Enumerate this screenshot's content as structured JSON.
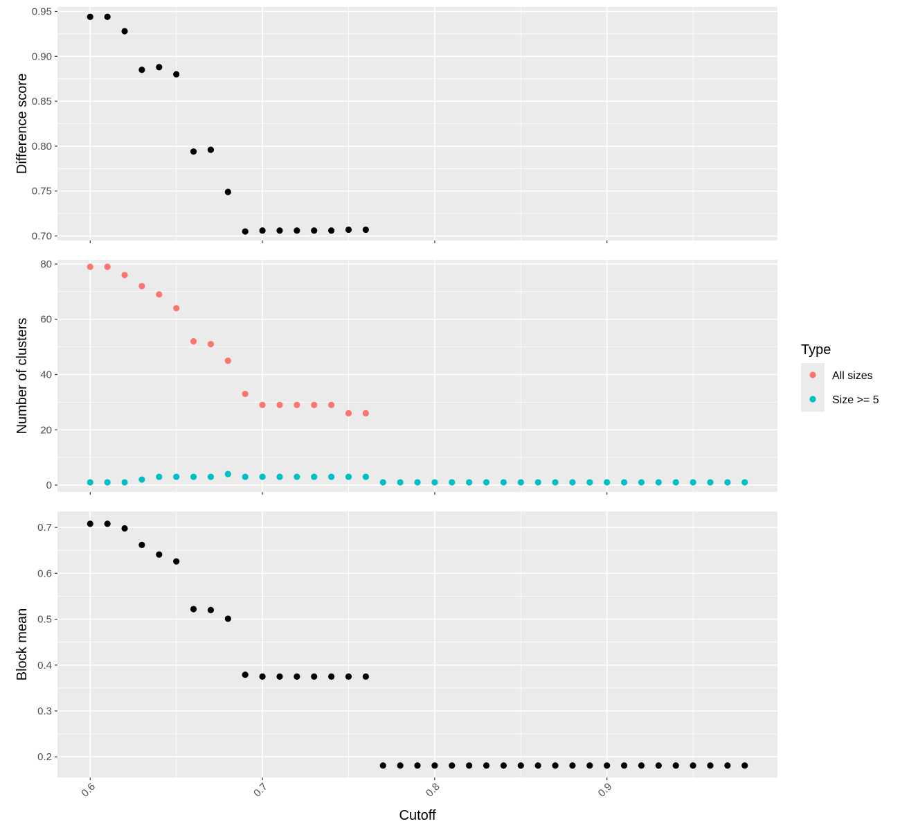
{
  "chart_data": {
    "type": "scatter",
    "x_label": "Cutoff",
    "x_ticks": [
      0.6,
      0.7,
      0.8,
      0.9
    ],
    "x_tick_labels": [
      "0.6",
      "0.7",
      "0.8",
      "0.9"
    ],
    "x_range": [
      0.581,
      0.999
    ],
    "grid": true,
    "legend": {
      "title": "Type",
      "placement": "right",
      "entries": [
        {
          "name": "All sizes",
          "color": "#F8766D"
        },
        {
          "name": "Size >= 5",
          "color": "#00BFC4"
        }
      ]
    },
    "panels": [
      {
        "id": "difference",
        "ylabel": "Difference score",
        "ylim": [
          0.695,
          0.955
        ],
        "y_ticks": [
          0.7,
          0.75,
          0.8,
          0.85,
          0.9,
          0.95
        ],
        "y_tick_labels": [
          "0.70",
          "0.75",
          "0.80",
          "0.85",
          "0.90",
          "0.95"
        ],
        "series": [
          {
            "color": "#000000",
            "x": [
              0.6,
              0.61,
              0.62,
              0.63,
              0.64,
              0.65,
              0.66,
              0.67,
              0.68,
              0.69,
              0.7,
              0.71,
              0.72,
              0.73,
              0.74,
              0.75,
              0.76
            ],
            "y": [
              0.944,
              0.944,
              0.928,
              0.885,
              0.888,
              0.88,
              0.794,
              0.796,
              0.749,
              0.705,
              0.706,
              0.706,
              0.706,
              0.706,
              0.706,
              0.707,
              0.707
            ]
          }
        ]
      },
      {
        "id": "clusters",
        "ylabel": "Number of clusters",
        "ylim": [
          -2.5,
          81.5
        ],
        "y_ticks": [
          0,
          20,
          40,
          60,
          80
        ],
        "y_tick_labels": [
          "0",
          "20",
          "40",
          "60",
          "80"
        ],
        "series": [
          {
            "name": "All sizes",
            "color": "#F8766D",
            "x": [
              0.6,
              0.61,
              0.62,
              0.63,
              0.64,
              0.65,
              0.66,
              0.67,
              0.68,
              0.69,
              0.7,
              0.71,
              0.72,
              0.73,
              0.74,
              0.75,
              0.76
            ],
            "y": [
              79,
              79,
              76,
              72,
              69,
              64,
              52,
              51,
              45,
              33,
              29,
              29,
              29,
              29,
              29,
              26,
              26
            ]
          },
          {
            "name": "Size >= 5",
            "color": "#00BFC4",
            "x": [
              0.6,
              0.61,
              0.62,
              0.63,
              0.64,
              0.65,
              0.66,
              0.67,
              0.68,
              0.69,
              0.7,
              0.71,
              0.72,
              0.73,
              0.74,
              0.75,
              0.76,
              0.77,
              0.78,
              0.79,
              0.8,
              0.81,
              0.82,
              0.83,
              0.84,
              0.85,
              0.86,
              0.87,
              0.88,
              0.89,
              0.9,
              0.91,
              0.92,
              0.93,
              0.94,
              0.95,
              0.96,
              0.97,
              0.98
            ],
            "y": [
              1,
              1,
              1,
              2,
              3,
              3,
              3,
              3,
              4,
              3,
              3,
              3,
              3,
              3,
              3,
              3,
              3,
              1,
              1,
              1,
              1,
              1,
              1,
              1,
              1,
              1,
              1,
              1,
              1,
              1,
              1,
              1,
              1,
              1,
              1,
              1,
              1,
              1,
              1
            ]
          }
        ]
      },
      {
        "id": "block",
        "ylabel": "Block mean",
        "ylim": [
          0.155,
          0.735
        ],
        "y_ticks": [
          0.2,
          0.3,
          0.4,
          0.5,
          0.6,
          0.7
        ],
        "y_tick_labels": [
          "0.2",
          "0.3",
          "0.4",
          "0.5",
          "0.6",
          "0.7"
        ],
        "series": [
          {
            "color": "#000000",
            "x": [
              0.6,
              0.61,
              0.62,
              0.63,
              0.64,
              0.65,
              0.66,
              0.67,
              0.68,
              0.69,
              0.7,
              0.71,
              0.72,
              0.73,
              0.74,
              0.75,
              0.76,
              0.77,
              0.78,
              0.79,
              0.8,
              0.81,
              0.82,
              0.83,
              0.84,
              0.85,
              0.86,
              0.87,
              0.88,
              0.89,
              0.9,
              0.91,
              0.92,
              0.93,
              0.94,
              0.95,
              0.96,
              0.97,
              0.98
            ],
            "y": [
              0.708,
              0.708,
              0.698,
              0.662,
              0.641,
              0.626,
              0.522,
              0.52,
              0.501,
              0.379,
              0.375,
              0.375,
              0.375,
              0.375,
              0.375,
              0.375,
              0.375,
              0.181,
              0.181,
              0.181,
              0.181,
              0.181,
              0.181,
              0.181,
              0.181,
              0.181,
              0.181,
              0.181,
              0.181,
              0.181,
              0.181,
              0.181,
              0.181,
              0.181,
              0.181,
              0.181,
              0.181,
              0.181,
              0.181
            ]
          }
        ]
      }
    ]
  }
}
